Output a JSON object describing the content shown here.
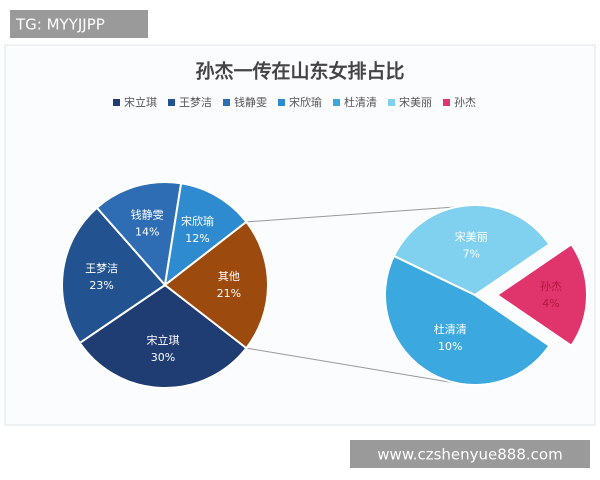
{
  "watermark_top": "TG: MYYJJPP",
  "watermark_bottom": "www.czshenyue888.com",
  "chart_data": {
    "type": "pie-of-pie",
    "title": "孙杰一传在山东女排占比",
    "series": [
      {
        "name": "宋立琪",
        "color": "#1f3d73"
      },
      {
        "name": "王梦洁",
        "color": "#22528f"
      },
      {
        "name": "钱静雯",
        "color": "#2e6db3"
      },
      {
        "name": "宋欣瑜",
        "color": "#2f8bd0"
      },
      {
        "name": "杜清清",
        "color": "#3ba8df"
      },
      {
        "name": "宋美丽",
        "color": "#80d0f0"
      },
      {
        "name": "孙杰",
        "color": "#e0346c"
      }
    ],
    "main": {
      "categories": [
        "宋立琪",
        "王梦洁",
        "钱静雯",
        "宋欣瑜",
        "其他"
      ],
      "values": [
        30,
        23,
        14,
        12,
        21
      ],
      "value_labels": [
        "30%",
        "23%",
        "14%",
        "12%",
        "21%"
      ],
      "colors": [
        "#1f3d73",
        "#22528f",
        "#2e6db3",
        "#2f8bd0",
        "#9c4a0e"
      ]
    },
    "secondary": {
      "categories": [
        "杜清清",
        "宋美丽",
        "孙杰"
      ],
      "values": [
        10,
        7,
        4
      ],
      "value_labels": [
        "10%",
        "7%",
        "4%"
      ],
      "colors": [
        "#3ba8df",
        "#80d0f0",
        "#e0346c"
      ]
    }
  }
}
